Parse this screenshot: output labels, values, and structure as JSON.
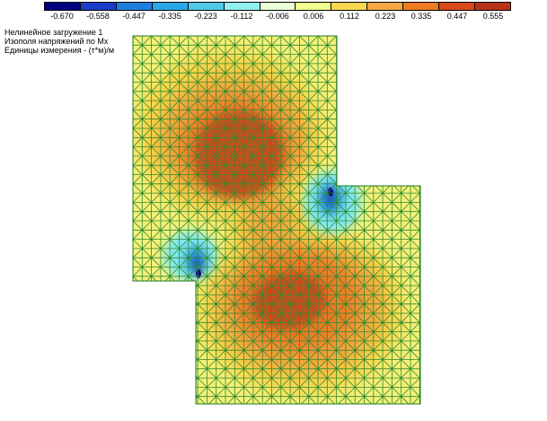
{
  "legend": {
    "colors": [
      "#000080",
      "#1a3ec8",
      "#1f7fe0",
      "#29a8e8",
      "#4fc8e8",
      "#8ff0f0",
      "#e8ffd8",
      "#f0ff90",
      "#f8d850",
      "#f8a840",
      "#f07a22",
      "#d84818",
      "#b83218"
    ],
    "values": [
      "-0.670",
      "-0.558",
      "-0.447",
      "-0.335",
      "-0.223",
      "-0.112",
      "-0.006",
      "0.006",
      "0.112",
      "0.223",
      "0.335",
      "0.447",
      "0.555"
    ]
  },
  "info": {
    "line1": "Нелинейное загружение  1",
    "line2": "Изополя напряжений по Mx",
    "line3": "Единицы измерения - (т*м)/м"
  },
  "plot": {
    "mesh_color": "#2e8b2e",
    "outline_color": "#1f7a1f",
    "zone_colors": {
      "base": "#f4f079",
      "mid": "#f8d44a",
      "high": "#f2a63a",
      "higher": "#ef7c26",
      "peak": "#c8501a",
      "neg1": "#7fe8ee",
      "neg2": "#2aa7e2",
      "neg3": "#1d49c4",
      "neg4": "#0a0a78"
    }
  }
}
